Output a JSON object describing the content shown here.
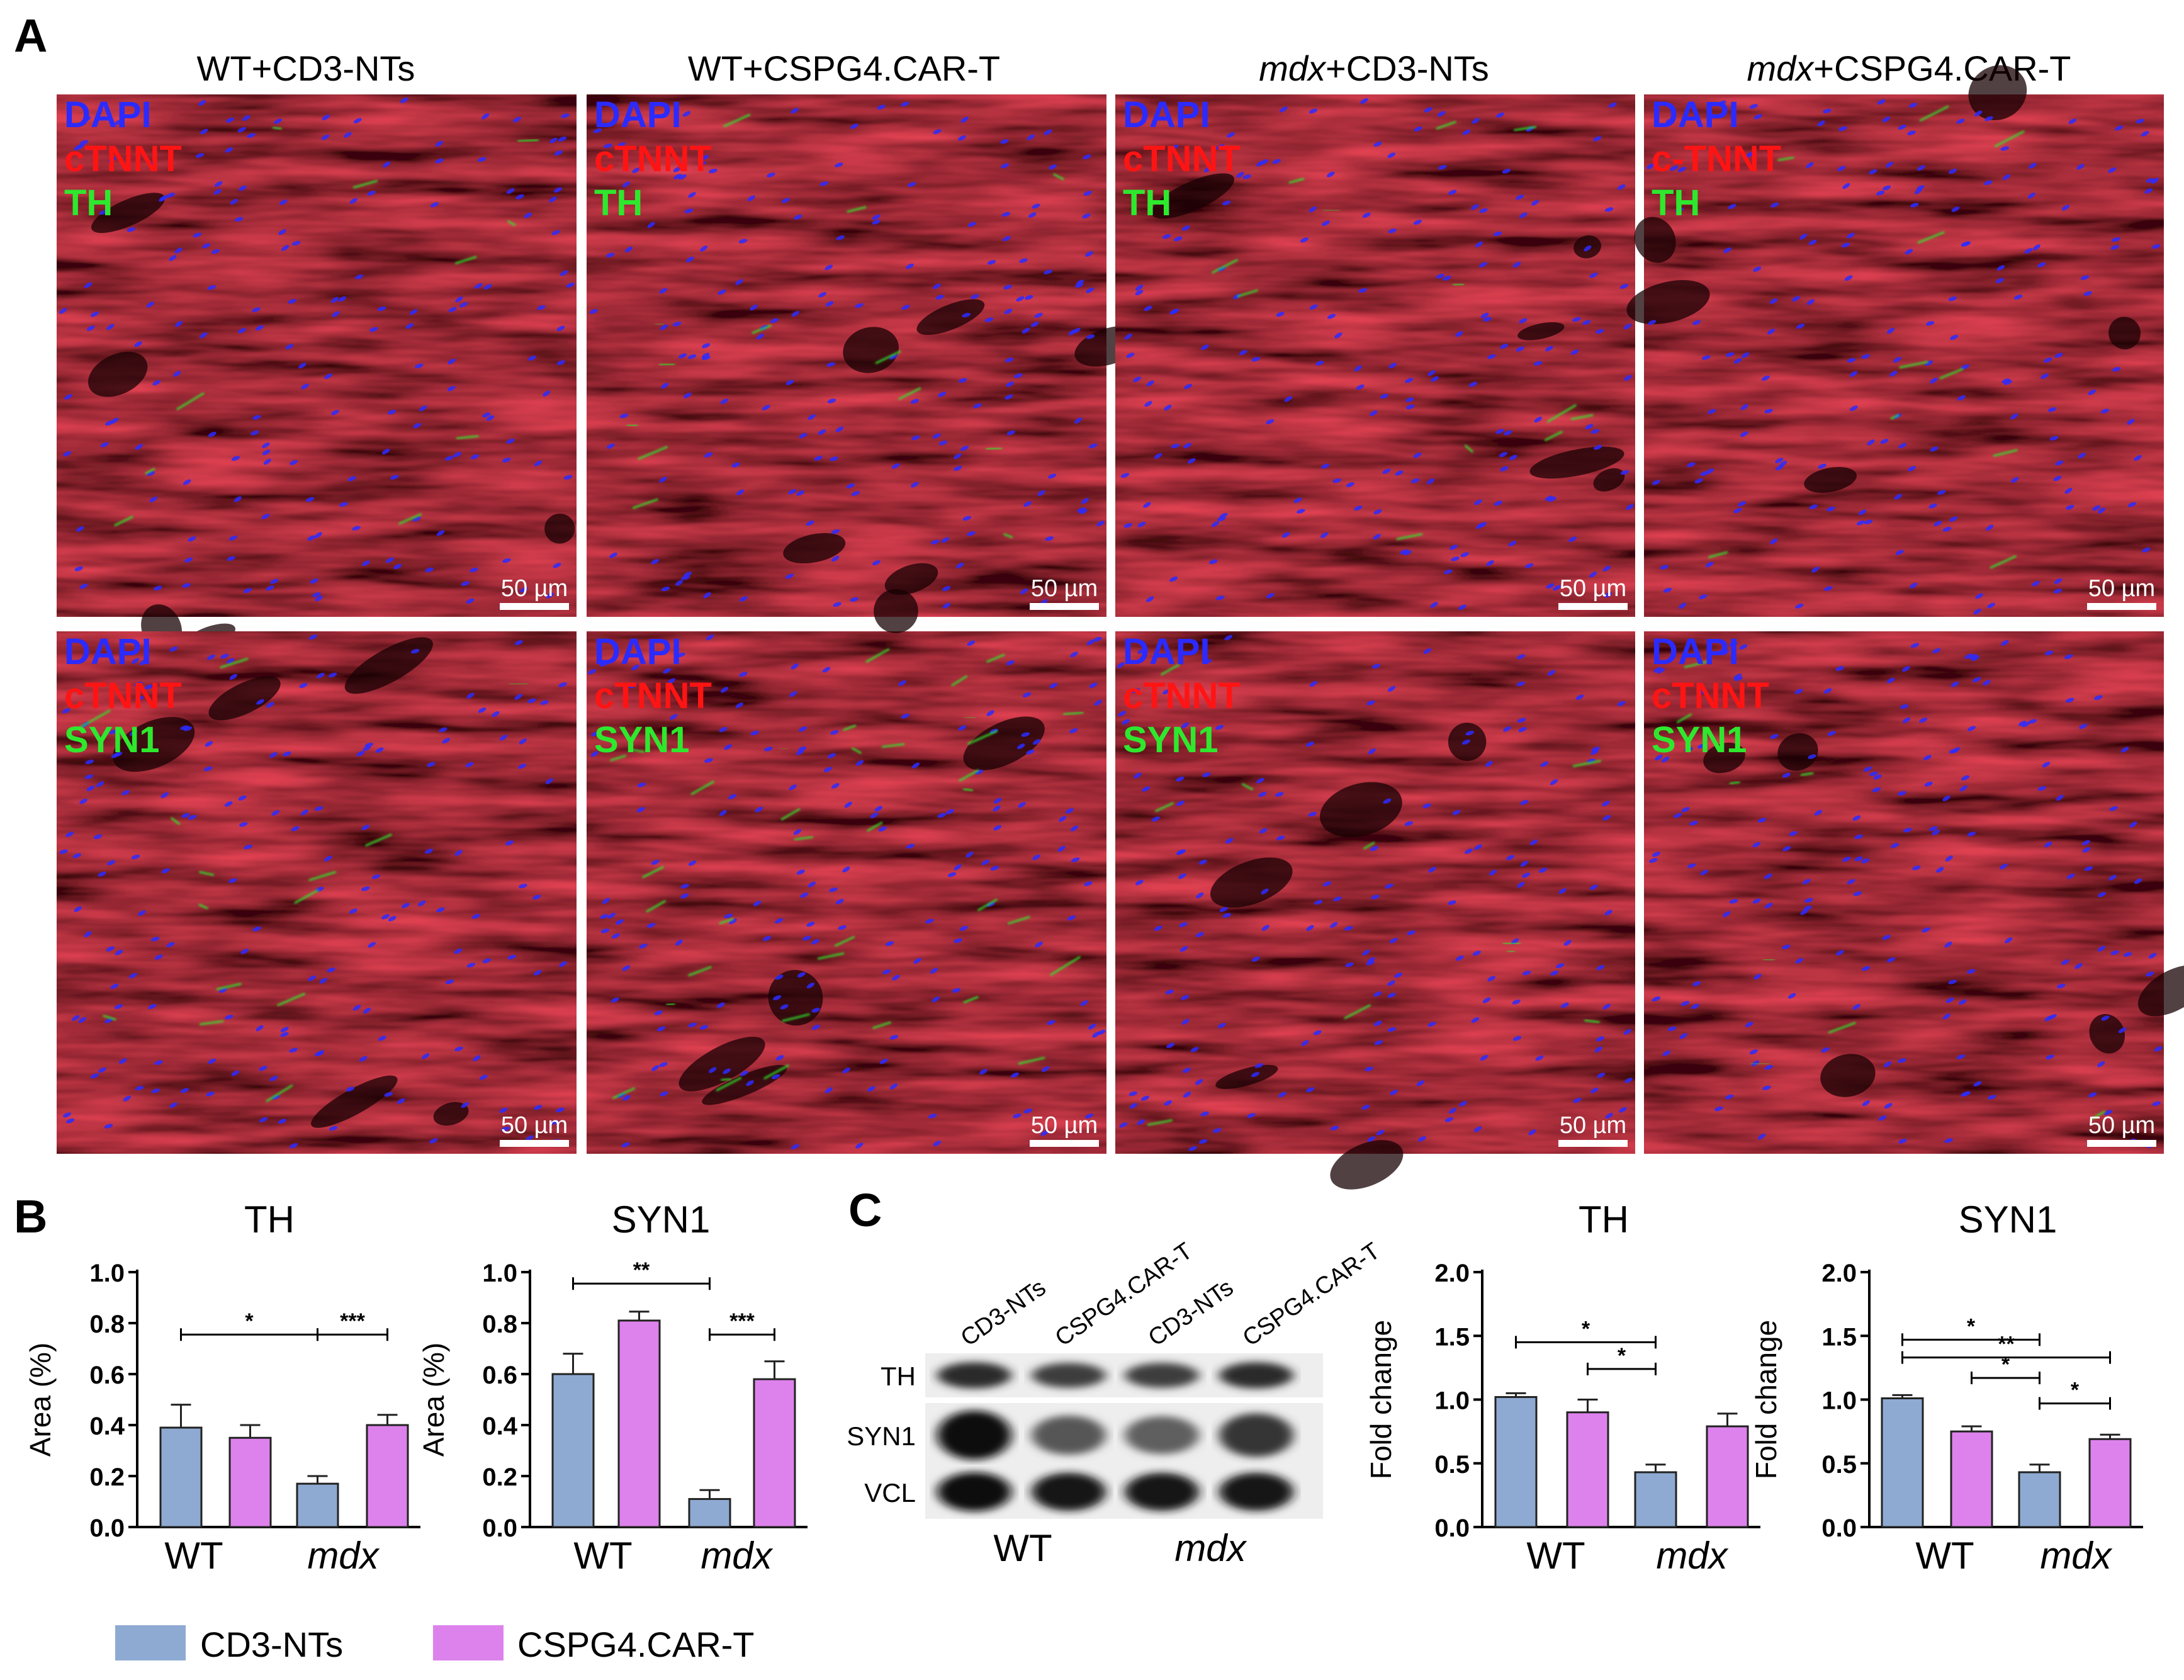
{
  "figure": {
    "panel_letters": {
      "a": "A",
      "b": "B",
      "c": "C"
    },
    "colors": {
      "dapi": "#2b2bff",
      "ctnnt": "#ff1414",
      "marker": "#2ee82e",
      "cd3": "#8eaad2",
      "car": "#dd82ec",
      "tissue_dark": "#3a0508",
      "tissue_red": "#b0141c"
    }
  },
  "panel_a": {
    "column_headers": [
      {
        "italic": "",
        "text": "WT+CD3-NTs"
      },
      {
        "italic": "",
        "text": "WT+CSPG4.CAR-T"
      },
      {
        "italic": "mdx",
        "text": "+CD3-NTs"
      },
      {
        "italic": "mdx",
        "text": "+CSPG4.CAR-T"
      }
    ],
    "scale_bar_label": "50 µm",
    "rows": [
      {
        "channels": [
          [
            "DAPI",
            "cTNNT",
            "TH"
          ],
          [
            "DAPI",
            "cTNNT",
            "TH"
          ],
          [
            "DAPI",
            "cTNNT",
            "TH"
          ],
          [
            "DAPI",
            "c-TNNT",
            "TH"
          ]
        ],
        "marker_density": [
          0.25,
          0.35,
          0.3,
          0.25
        ]
      },
      {
        "channels": [
          [
            "DAPI",
            "cTNNT",
            "SYN1"
          ],
          [
            "DAPI",
            "cTNNT",
            "SYN1"
          ],
          [
            "DAPI",
            "cTNNT",
            "SYN1"
          ],
          [
            "DAPI",
            "cTNNT",
            "SYN1"
          ]
        ],
        "marker_density": [
          0.35,
          0.9,
          0.25,
          0.2
        ]
      }
    ]
  },
  "chart_data": [
    {
      "type": "bar",
      "panel": "B",
      "title": "TH",
      "ylabel": "Area (%)",
      "xlabel": "",
      "ylim": [
        0,
        1.0
      ],
      "yticks": [
        "0.0",
        "0.2",
        "0.4",
        "0.6",
        "0.8",
        "1.0"
      ],
      "categories": [
        "WT",
        "mdx"
      ],
      "series": [
        {
          "name": "CD3-NTs",
          "values": [
            0.39,
            0.17
          ],
          "errors": [
            0.09,
            0.03
          ]
        },
        {
          "name": "CSPG4.CAR-T",
          "values": [
            0.35,
            0.4
          ],
          "errors": [
            0.05,
            0.04
          ]
        }
      ],
      "significance": [
        {
          "from": [
            0,
            0
          ],
          "to": [
            1,
            0
          ],
          "label": "*",
          "y": 0.755
        },
        {
          "from": [
            1,
            0
          ],
          "to": [
            1,
            1
          ],
          "label": "***",
          "y": 0.755
        }
      ]
    },
    {
      "type": "bar",
      "panel": "B",
      "title": "SYN1",
      "ylabel": "Area (%)",
      "xlabel": "",
      "ylim": [
        0,
        1.0
      ],
      "yticks": [
        "0.0",
        "0.2",
        "0.4",
        "0.6",
        "0.8",
        "1.0"
      ],
      "categories": [
        "WT",
        "mdx"
      ],
      "series": [
        {
          "name": "CD3-NTs",
          "values": [
            0.6,
            0.11
          ],
          "errors": [
            0.08,
            0.035
          ]
        },
        {
          "name": "CSPG4.CAR-T",
          "values": [
            0.81,
            0.58
          ],
          "errors": [
            0.035,
            0.07
          ]
        }
      ],
      "significance": [
        {
          "from": [
            0,
            0
          ],
          "to": [
            1,
            0
          ],
          "label": "**",
          "y": 0.955
        },
        {
          "from": [
            1,
            0
          ],
          "to": [
            1,
            1
          ],
          "label": "***",
          "y": 0.755
        }
      ]
    },
    {
      "type": "bar",
      "panel": "C",
      "title": "TH",
      "ylabel": "Fold change",
      "xlabel": "",
      "ylim": [
        0,
        2.0
      ],
      "yticks": [
        "0.0",
        "0.5",
        "1.0",
        "1.5",
        "2.0"
      ],
      "categories": [
        "WT",
        "mdx"
      ],
      "series": [
        {
          "name": "CD3-NTs",
          "values": [
            1.02,
            0.43
          ],
          "errors": [
            0.03,
            0.06
          ]
        },
        {
          "name": "CSPG4.CAR-T",
          "values": [
            0.9,
            0.79
          ],
          "errors": [
            0.1,
            0.1
          ]
        }
      ],
      "significance": [
        {
          "from": [
            0,
            0
          ],
          "to": [
            1,
            0
          ],
          "label": "*",
          "y": 1.45
        },
        {
          "from": [
            0,
            1
          ],
          "to": [
            1,
            0
          ],
          "label": "*",
          "y": 1.24
        }
      ]
    },
    {
      "type": "bar",
      "panel": "C",
      "title": "SYN1",
      "ylabel": "Fold change",
      "xlabel": "",
      "ylim": [
        0,
        2.0
      ],
      "yticks": [
        "0.0",
        "0.5",
        "1.0",
        "1.5",
        "2.0"
      ],
      "categories": [
        "WT",
        "mdx"
      ],
      "series": [
        {
          "name": "CD3-NTs",
          "values": [
            1.01,
            0.43
          ],
          "errors": [
            0.025,
            0.06
          ]
        },
        {
          "name": "CSPG4.CAR-T",
          "values": [
            0.75,
            0.69
          ],
          "errors": [
            0.04,
            0.035
          ]
        }
      ],
      "significance": [
        {
          "from": [
            0,
            0
          ],
          "to": [
            1,
            0
          ],
          "label": "*",
          "y": 1.47
        },
        {
          "from": [
            0,
            0
          ],
          "to": [
            1,
            1
          ],
          "label": "**",
          "y": 1.33
        },
        {
          "from": [
            0,
            1
          ],
          "to": [
            1,
            0
          ],
          "label": "*",
          "y": 1.17
        },
        {
          "from": [
            1,
            0
          ],
          "to": [
            1,
            1
          ],
          "label": "*",
          "y": 0.97
        }
      ]
    }
  ],
  "legend": [
    {
      "label": "CD3-NTs",
      "color": "#8eaad2"
    },
    {
      "label": "CSPG4.CAR-T",
      "color": "#dd82ec"
    }
  ],
  "western_blot": {
    "lane_labels": [
      "CD3-NTs",
      "CSPG4.CAR-T",
      "CD3-NTs",
      "CSPG4.CAR-T"
    ],
    "rows": [
      {
        "label": "TH",
        "intensity": [
          0.8,
          0.7,
          0.7,
          0.8
        ]
      },
      {
        "label": "SYN1",
        "intensity": [
          1.0,
          0.55,
          0.5,
          0.75
        ]
      },
      {
        "label": "VCL",
        "intensity": [
          1.0,
          0.95,
          0.95,
          0.95
        ]
      }
    ],
    "group_labels": [
      {
        "text": "WT",
        "italic": false
      },
      {
        "text": "mdx",
        "italic": true
      }
    ]
  }
}
